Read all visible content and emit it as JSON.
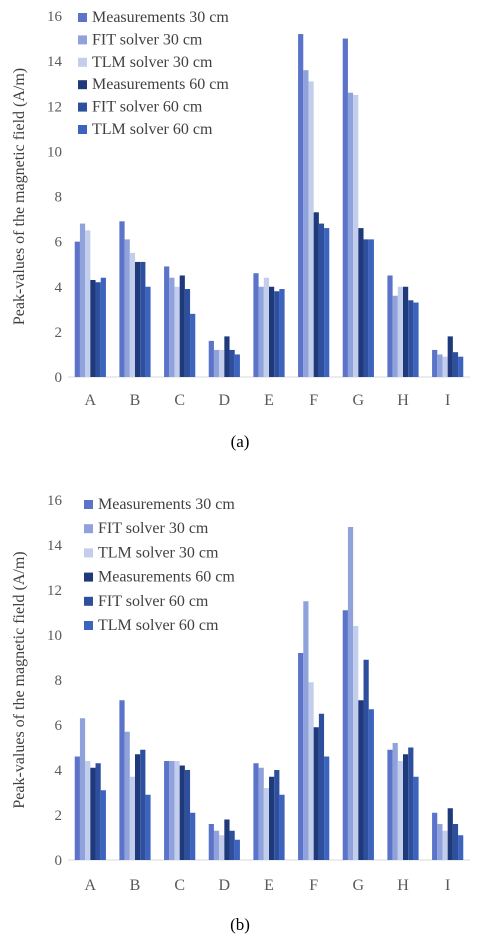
{
  "chart_data": [
    {
      "type": "bar",
      "caption": "(a)",
      "ylabel": "Peak-values of the magnetic field (A/m)",
      "ylim": [
        0,
        16
      ],
      "yticks": [
        0,
        2,
        4,
        6,
        8,
        10,
        12,
        14,
        16
      ],
      "grid": false,
      "legend_position": "top-left",
      "categories": [
        "A",
        "B",
        "C",
        "D",
        "E",
        "F",
        "G",
        "H",
        "I"
      ],
      "series": [
        {
          "name": "Measurements 30 cm",
          "color": "#5b73c9",
          "values": [
            6.0,
            6.9,
            4.9,
            1.6,
            4.6,
            15.2,
            15.0,
            4.5,
            1.2
          ]
        },
        {
          "name": "FIT solver 30 cm",
          "color": "#8fa2dc",
          "values": [
            6.8,
            6.1,
            4.4,
            1.2,
            4.0,
            13.6,
            12.6,
            3.6,
            1.0
          ]
        },
        {
          "name": "TLM solver 30 cm",
          "color": "#c3cdec",
          "values": [
            6.5,
            5.5,
            4.0,
            1.2,
            4.4,
            13.1,
            12.5,
            4.0,
            0.9
          ]
        },
        {
          "name": "Measurements 60 cm",
          "color": "#1f3a7a",
          "values": [
            4.3,
            5.1,
            4.5,
            1.8,
            4.0,
            7.3,
            6.6,
            4.0,
            1.8
          ]
        },
        {
          "name": "FIT solver 60 cm",
          "color": "#2d4f9e",
          "values": [
            4.2,
            5.1,
            3.9,
            1.2,
            3.8,
            6.8,
            6.1,
            3.4,
            1.1
          ]
        },
        {
          "name": "TLM solver 60 cm",
          "color": "#3c63bd",
          "values": [
            4.4,
            4.0,
            2.8,
            1.0,
            3.9,
            6.6,
            6.1,
            3.3,
            0.9
          ]
        }
      ]
    },
    {
      "type": "bar",
      "caption": "(b)",
      "ylabel": "Peak-values of the magnetic field (A/m)",
      "ylim": [
        0,
        16
      ],
      "yticks": [
        0,
        2,
        4,
        6,
        8,
        10,
        12,
        14,
        16
      ],
      "grid": false,
      "legend_position": "top-left",
      "categories": [
        "A",
        "B",
        "C",
        "D",
        "E",
        "F",
        "G",
        "H",
        "I"
      ],
      "series": [
        {
          "name": "Measurements 30 cm",
          "color": "#5b73c9",
          "values": [
            4.6,
            7.1,
            4.4,
            1.6,
            4.3,
            9.2,
            11.1,
            4.9,
            2.1
          ]
        },
        {
          "name": "FIT solver 30 cm",
          "color": "#8fa2dc",
          "values": [
            6.3,
            5.7,
            4.4,
            1.3,
            4.1,
            11.5,
            14.8,
            5.2,
            1.6
          ]
        },
        {
          "name": "TLM solver 30 cm",
          "color": "#c3cdec",
          "values": [
            4.4,
            3.7,
            4.4,
            1.1,
            3.2,
            7.9,
            10.4,
            4.4,
            1.3
          ]
        },
        {
          "name": "Measurements 60 cm",
          "color": "#1f3a7a",
          "values": [
            4.1,
            4.7,
            4.2,
            1.8,
            3.7,
            5.9,
            7.1,
            4.7,
            2.3
          ]
        },
        {
          "name": "FIT solver 60 cm",
          "color": "#2d4f9e",
          "values": [
            4.3,
            4.9,
            4.0,
            1.3,
            4.0,
            6.5,
            8.9,
            5.0,
            1.6
          ]
        },
        {
          "name": "TLM solver 60 cm",
          "color": "#3c63bd",
          "values": [
            3.1,
            2.9,
            2.1,
            0.9,
            2.9,
            4.6,
            6.7,
            3.7,
            1.1
          ]
        }
      ]
    }
  ]
}
